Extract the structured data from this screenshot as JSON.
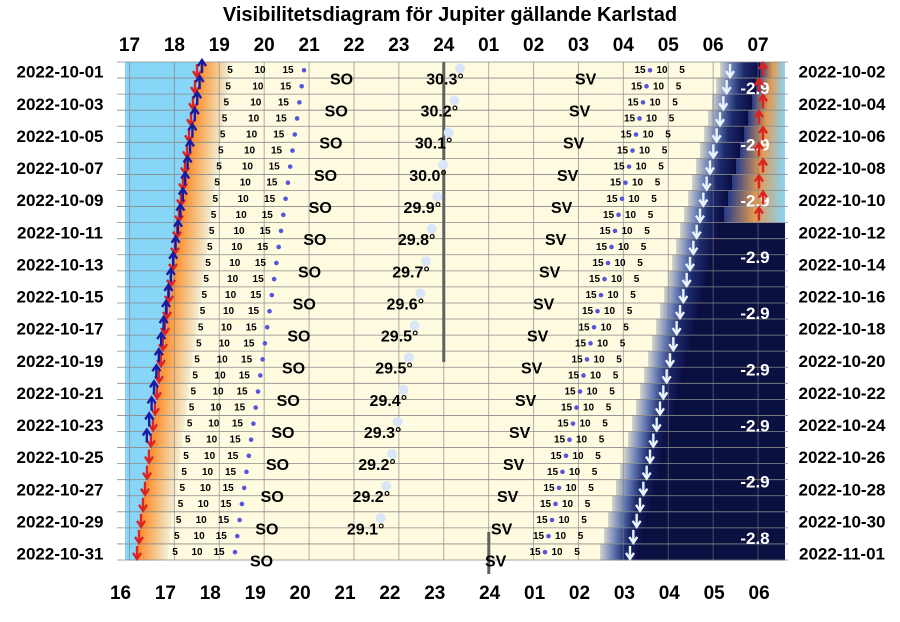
{
  "chart_data": {
    "type": "heatmap",
    "title": "Visibilitetsdiagram för Jupiter gällande Karlstad",
    "top_axis_hours": [
      "17",
      "18",
      "19",
      "20",
      "21",
      "22",
      "23",
      "24",
      "01",
      "02",
      "03",
      "04",
      "05",
      "06",
      "07"
    ],
    "bottom_axis_hours": [
      "16",
      "17",
      "18",
      "19",
      "20",
      "21",
      "22",
      "23",
      "24",
      "01",
      "02",
      "03",
      "04",
      "05",
      "06"
    ],
    "left_dates": [
      "2022-10-01",
      "2022-10-03",
      "2022-10-05",
      "2022-10-07",
      "2022-10-09",
      "2022-10-11",
      "2022-10-13",
      "2022-10-15",
      "2022-10-17",
      "2022-10-19",
      "2022-10-21",
      "2022-10-23",
      "2022-10-25",
      "2022-10-27",
      "2022-10-29",
      "2022-10-31"
    ],
    "right_dates": [
      "2022-10-02",
      "2022-10-04",
      "2022-10-06",
      "2022-10-08",
      "2022-10-10",
      "2022-10-12",
      "2022-10-14",
      "2022-10-16",
      "2022-10-18",
      "2022-10-20",
      "2022-10-22",
      "2022-10-24",
      "2022-10-26",
      "2022-10-28",
      "2022-10-30",
      "2022-11-01"
    ],
    "max_altitude": [
      {
        "date": "2022-10-01",
        "label": "30.3°"
      },
      {
        "date": "2022-10-03",
        "label": "30.2°"
      },
      {
        "date": "2022-10-05",
        "label": "30.1°"
      },
      {
        "date": "2022-10-07",
        "label": "30.0°"
      },
      {
        "date": "2022-10-09",
        "label": "29.9°"
      },
      {
        "date": "2022-10-11",
        "label": "29.8°"
      },
      {
        "date": "2022-10-13",
        "label": "29.7°"
      },
      {
        "date": "2022-10-15",
        "label": "29.6°"
      },
      {
        "date": "2022-10-17",
        "label": "29.5°"
      },
      {
        "date": "2022-10-19",
        "label": "29.5°"
      },
      {
        "date": "2022-10-21",
        "label": "29.4°"
      },
      {
        "date": "2022-10-23",
        "label": "29.3°"
      },
      {
        "date": "2022-10-25",
        "label": "29.2°"
      },
      {
        "date": "2022-10-27",
        "label": "29.2°"
      },
      {
        "date": "2022-10-29",
        "label": "29.1°"
      }
    ],
    "magnitude_labels": [
      "-2.9",
      "-2.9",
      "-2.9",
      "-2.9",
      "-2.9",
      "-2.9",
      "-2.9",
      "-2.9",
      "-2.8"
    ],
    "direction_labels": {
      "rise_side": "SO",
      "set_side": "SV"
    },
    "altitude_marks": [
      "5",
      "10",
      "15"
    ],
    "colors": {
      "daylight": "#87d5f7",
      "twilight_orange": "#f4a460",
      "night": "#fffbe0",
      "dark_sky": "#0a1040",
      "rise_arrow": "#dd2222",
      "sunset_arrow": "#1a1aa0",
      "set_arrow": "#e8f4ff"
    }
  }
}
